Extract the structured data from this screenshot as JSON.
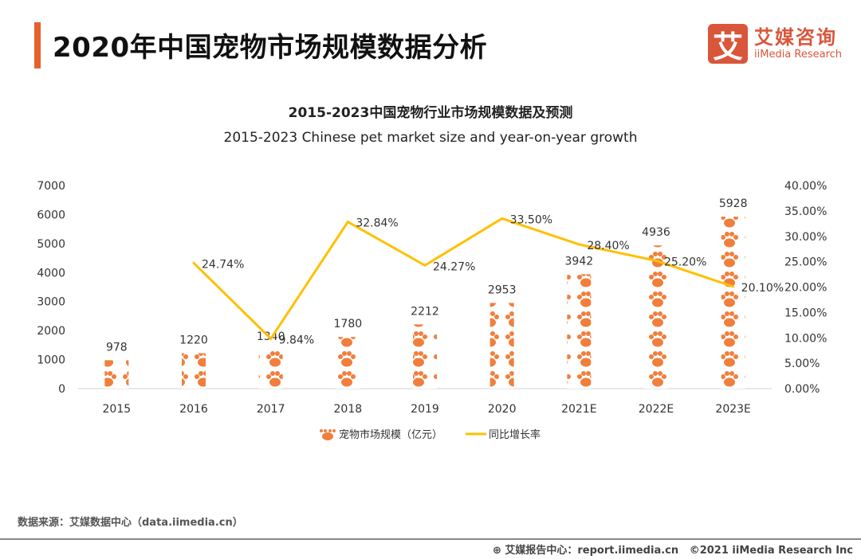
{
  "header": {
    "title": "2020年中国宠物市场规模数据分析",
    "logo_mark": "艾",
    "logo_cn": "艾媒咨询",
    "logo_en": "iiMedia Research"
  },
  "chart_data": {
    "type": "bar",
    "title": "2015-2023中国宠物行业市场规模数据及预测",
    "subtitle": "2015-2023 Chinese pet market size and year-on-year growth",
    "categories": [
      "2015",
      "2016",
      "2017",
      "2018",
      "2019",
      "2020",
      "2021E",
      "2022E",
      "2023E"
    ],
    "series": [
      {
        "name": "宠物市场规模（亿元）",
        "type": "bar",
        "axis": "left",
        "values": [
          978,
          1220,
          1340,
          1780,
          2212,
          2953,
          3942,
          4936,
          5928
        ],
        "labels": [
          "978",
          "1220",
          "1340",
          "1780",
          "2212",
          "2953",
          "3942",
          "4936",
          "5928"
        ],
        "color": "#F07F3C"
      },
      {
        "name": "同比增长率",
        "type": "line",
        "axis": "right",
        "values": [
          null,
          24.74,
          9.84,
          32.84,
          24.27,
          33.5,
          28.4,
          25.2,
          20.1
        ],
        "labels": [
          "",
          "24.74%",
          "9.84%",
          "32.84%",
          "24.27%",
          "33.50%",
          "28.40%",
          "25.20%",
          "20.10%"
        ],
        "color": "#FFC000"
      }
    ],
    "y_left": {
      "range": [
        0,
        7000
      ],
      "ticks": [
        "0",
        "1000",
        "2000",
        "3000",
        "4000",
        "5000",
        "6000",
        "7000"
      ]
    },
    "y_right": {
      "range": [
        0,
        40
      ],
      "ticks": [
        "0.00%",
        "5.00%",
        "10.00%",
        "15.00%",
        "20.00%",
        "25.00%",
        "30.00%",
        "35.00%",
        "40.00%"
      ]
    },
    "grid": false,
    "legend": "bottom"
  },
  "footer": {
    "source": "数据来源：艾媒数据中心（data.iimedia.cn）",
    "report": "艾媒报告中心：report.iimedia.cn",
    "copyright": "©2021  iiMedia Research  Inc"
  }
}
